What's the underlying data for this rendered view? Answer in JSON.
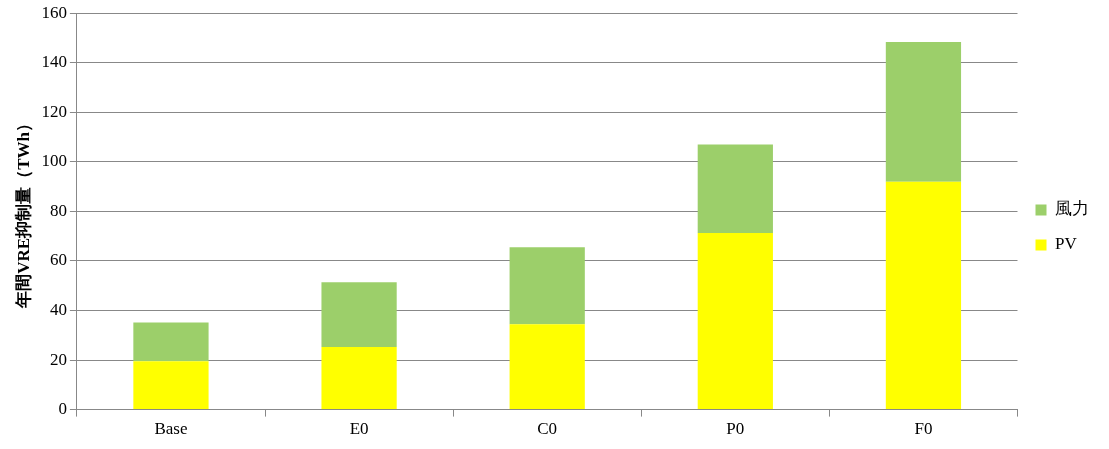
{
  "chart_data": {
    "type": "bar",
    "ylabel": "年間VRE抑制量（TWh）",
    "categories": [
      "Base",
      "E0",
      "C0",
      "P0",
      "F0"
    ],
    "stacked": true,
    "series": [
      {
        "name": "PV",
        "color": "#ffff00",
        "values": [
          19.5,
          25.3,
          34.4,
          71.3,
          92
        ]
      },
      {
        "name": "風力",
        "color": "#9ccf6a",
        "values": [
          15.7,
          26.1,
          31.1,
          35.7,
          56.4
        ]
      }
    ],
    "ylim": [
      0,
      160
    ],
    "yticks": [
      0,
      20,
      40,
      60,
      80,
      100,
      120,
      140,
      160
    ],
    "grid": "y",
    "legend": "right"
  }
}
